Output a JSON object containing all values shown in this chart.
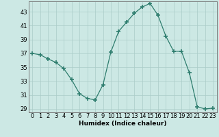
{
  "x": [
    0,
    1,
    2,
    3,
    4,
    5,
    6,
    7,
    8,
    9,
    10,
    11,
    12,
    13,
    14,
    15,
    16,
    17,
    18,
    19,
    20,
    21,
    22,
    23
  ],
  "y": [
    37,
    36.8,
    36.2,
    35.7,
    34.8,
    33.2,
    31.2,
    30.5,
    30.3,
    32.5,
    37.2,
    40.2,
    41.5,
    42.8,
    43.7,
    44.2,
    42.5,
    39.5,
    37.3,
    37.3,
    34.2,
    29.3,
    29.0,
    29.1
  ],
  "line_color": "#2e7d6e",
  "marker": "+",
  "marker_size": 4,
  "marker_linewidth": 1.2,
  "bg_color": "#cce8e4",
  "grid_color": "#aaccc8",
  "xlabel": "Humidex (Indice chaleur)",
  "xlim": [
    -0.5,
    23.5
  ],
  "ylim": [
    28.5,
    44.5
  ],
  "yticks": [
    29,
    31,
    33,
    35,
    37,
    39,
    41,
    43
  ],
  "xticks": [
    0,
    1,
    2,
    3,
    4,
    5,
    6,
    7,
    8,
    9,
    10,
    11,
    12,
    13,
    14,
    15,
    16,
    17,
    18,
    19,
    20,
    21,
    22,
    23
  ],
  "label_fontsize": 6.5,
  "tick_fontsize": 6.0
}
